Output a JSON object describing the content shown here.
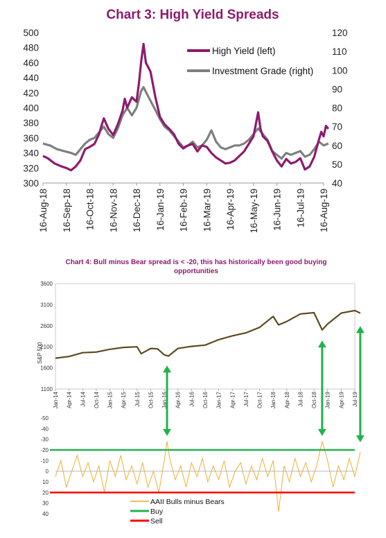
{
  "chart_data": [
    {
      "type": "line",
      "title": "Chart 3: High Yield Spreads",
      "x_labels": [
        "16-Aug-18",
        "16-Sep-18",
        "16-Oct-18",
        "16-Nov-18",
        "16-Dec-18",
        "16-Jan-19",
        "16-Feb-19",
        "16-Mar-19",
        "16-Apr-19",
        "16-May-19",
        "16-Jun-19",
        "16-Jul-19",
        "16-Aug-19"
      ],
      "y_left": {
        "min": 300,
        "max": 500,
        "ticks": [
          300,
          320,
          340,
          360,
          380,
          400,
          420,
          440,
          460,
          480,
          500
        ]
      },
      "y_right": {
        "min": 40,
        "max": 120,
        "ticks": [
          40,
          50,
          60,
          70,
          80,
          90,
          100,
          110,
          120
        ]
      },
      "legend_position": "top-right",
      "series": [
        {
          "name": "High Yield (left)",
          "axis": "left",
          "color": "#8e1a6e",
          "points": [
            [
              0,
              336
            ],
            [
              0.2,
              333
            ],
            [
              0.5,
              326
            ],
            [
              0.8,
              322
            ],
            [
              1,
              320
            ],
            [
              1.2,
              317
            ],
            [
              1.4,
              322
            ],
            [
              1.6,
              330
            ],
            [
              1.8,
              345
            ],
            [
              2,
              348
            ],
            [
              2.2,
              352
            ],
            [
              2.4,
              365
            ],
            [
              2.5,
              376
            ],
            [
              2.6,
              386
            ],
            [
              2.8,
              372
            ],
            [
              3,
              364
            ],
            [
              3.2,
              378
            ],
            [
              3.4,
              396
            ],
            [
              3.5,
              412
            ],
            [
              3.6,
              400
            ],
            [
              3.8,
              414
            ],
            [
              4,
              408
            ],
            [
              4.1,
              432
            ],
            [
              4.2,
              462
            ],
            [
              4.3,
              485
            ],
            [
              4.4,
              460
            ],
            [
              4.6,
              448
            ],
            [
              4.8,
              415
            ],
            [
              5,
              388
            ],
            [
              5.2,
              378
            ],
            [
              5.4,
              372
            ],
            [
              5.6,
              365
            ],
            [
              5.8,
              352
            ],
            [
              6,
              346
            ],
            [
              6.2,
              350
            ],
            [
              6.4,
              352
            ],
            [
              6.6,
              342
            ],
            [
              6.8,
              350
            ],
            [
              7,
              348
            ],
            [
              7.2,
              340
            ],
            [
              7.4,
              334
            ],
            [
              7.6,
              330
            ],
            [
              7.8,
              326
            ],
            [
              8,
              327
            ],
            [
              8.2,
              330
            ],
            [
              8.4,
              336
            ],
            [
              8.6,
              342
            ],
            [
              8.8,
              352
            ],
            [
              9,
              362
            ],
            [
              9.1,
              378
            ],
            [
              9.2,
              394
            ],
            [
              9.3,
              372
            ],
            [
              9.4,
              362
            ],
            [
              9.6,
              356
            ],
            [
              9.8,
              342
            ],
            [
              10,
              330
            ],
            [
              10.2,
              322
            ],
            [
              10.4,
              332
            ],
            [
              10.6,
              326
            ],
            [
              10.8,
              328
            ],
            [
              11,
              333
            ],
            [
              11.2,
              318
            ],
            [
              11.4,
              322
            ],
            [
              11.6,
              335
            ],
            [
              11.8,
              358
            ],
            [
              11.9,
              368
            ],
            [
              12,
              362
            ],
            [
              12.1,
              376
            ],
            [
              12.2,
              372
            ]
          ]
        },
        {
          "name": "Investment Grade (right)",
          "axis": "right",
          "color": "#7f7f7f",
          "points": [
            [
              0,
              61
            ],
            [
              0.3,
              60
            ],
            [
              0.6,
              58
            ],
            [
              0.9,
              57
            ],
            [
              1.2,
              56
            ],
            [
              1.4,
              55
            ],
            [
              1.6,
              58
            ],
            [
              1.8,
              61
            ],
            [
              2,
              63
            ],
            [
              2.2,
              64
            ],
            [
              2.4,
              67
            ],
            [
              2.6,
              70
            ],
            [
              2.8,
              66
            ],
            [
              3,
              64
            ],
            [
              3.2,
              69
            ],
            [
              3.4,
              76
            ],
            [
              3.6,
              80
            ],
            [
              3.8,
              76
            ],
            [
              4,
              80
            ],
            [
              4.2,
              89
            ],
            [
              4.3,
              91
            ],
            [
              4.5,
              86
            ],
            [
              4.8,
              79
            ],
            [
              5,
              74
            ],
            [
              5.2,
              70
            ],
            [
              5.4,
              68
            ],
            [
              5.6,
              65
            ],
            [
              5.8,
              62
            ],
            [
              6,
              59
            ],
            [
              6.2,
              60
            ],
            [
              6.4,
              62
            ],
            [
              6.6,
              59
            ],
            [
              6.8,
              60
            ],
            [
              7,
              63
            ],
            [
              7.2,
              68
            ],
            [
              7.4,
              62
            ],
            [
              7.6,
              59
            ],
            [
              7.8,
              58
            ],
            [
              8,
              59
            ],
            [
              8.2,
              60
            ],
            [
              8.4,
              60
            ],
            [
              8.6,
              61
            ],
            [
              8.8,
              63
            ],
            [
              9,
              66
            ],
            [
              9.2,
              69
            ],
            [
              9.4,
              66
            ],
            [
              9.6,
              63
            ],
            [
              9.8,
              57
            ],
            [
              10,
              55
            ],
            [
              10.2,
              53
            ],
            [
              10.4,
              56
            ],
            [
              10.6,
              55
            ],
            [
              10.8,
              56
            ],
            [
              11,
              57
            ],
            [
              11.2,
              54
            ],
            [
              11.4,
              55
            ],
            [
              11.6,
              58
            ],
            [
              11.8,
              62
            ],
            [
              12,
              60
            ],
            [
              12.2,
              61
            ]
          ]
        }
      ]
    },
    {
      "type": "line",
      "title": "Chart 4: Bull minus Bear spread is < -20, this has historically been good buying opportunities",
      "title_lines": [
        "Chart 4: Bull minus Bear spread is < -20, this has historically been good buying",
        "opportunities"
      ],
      "x_labels": [
        "Jan-14",
        "Apr-14",
        "Jul-14",
        "Oct-14",
        "Jan-15",
        "Apr-15",
        "Jul-15",
        "Oct-15",
        "Jan-16",
        "Apr-16",
        "Jul-16",
        "Oct-16",
        "Jan-17",
        "Apr-17",
        "Jul-17",
        "Oct-17",
        "Jan-18",
        "Apr-18",
        "Jul-18",
        "Oct-18",
        "Jan-19",
        "Apr-19",
        "Jul-19"
      ],
      "top_panel": {
        "ylabel": "S&P 500",
        "y_min": 1100,
        "y_max": 3600,
        "ticks": [
          1100,
          1600,
          2100,
          2600,
          3100,
          3600
        ],
        "series": {
          "color": "#5c4a1e",
          "points": [
            [
              0,
              1830
            ],
            [
              1,
              1870
            ],
            [
              2,
              1960
            ],
            [
              3,
              1975
            ],
            [
              4,
              2040
            ],
            [
              5,
              2085
            ],
            [
              6,
              2100
            ],
            [
              6.3,
              1935
            ],
            [
              7,
              2060
            ],
            [
              7.5,
              2050
            ],
            [
              8,
              1910
            ],
            [
              8.3,
              1880
            ],
            [
              9,
              2060
            ],
            [
              10,
              2110
            ],
            [
              11,
              2140
            ],
            [
              12,
              2270
            ],
            [
              13,
              2360
            ],
            [
              14,
              2430
            ],
            [
              15,
              2560
            ],
            [
              16,
              2820
            ],
            [
              16.4,
              2620
            ],
            [
              17,
              2700
            ],
            [
              18,
              2880
            ],
            [
              19,
              2910
            ],
            [
              19.6,
              2500
            ],
            [
              20,
              2640
            ],
            [
              21,
              2900
            ],
            [
              22,
              2960
            ],
            [
              22.4,
              2900
            ]
          ]
        }
      },
      "bottom_panel": {
        "y_min": -50,
        "y_max": 40,
        "ticks": [
          -50,
          -40,
          -30,
          -20,
          -10,
          0,
          10,
          20,
          30,
          40
        ],
        "series": [
          {
            "name": "AAII Bulls minus Bears",
            "color": "#e8a91b"
          },
          {
            "name": "Buy",
            "color": "#22b24c",
            "value": -20
          },
          {
            "name": "Sell",
            "color": "#ff0000",
            "value": 20
          }
        ],
        "bull_bear_points": [
          [
            0,
            5
          ],
          [
            0.4,
            -10
          ],
          [
            0.8,
            15
          ],
          [
            1.2,
            0
          ],
          [
            1.6,
            -15
          ],
          [
            2,
            5
          ],
          [
            2.4,
            -8
          ],
          [
            2.8,
            10
          ],
          [
            3.2,
            -5
          ],
          [
            3.6,
            20
          ],
          [
            4,
            -10
          ],
          [
            4.4,
            5
          ],
          [
            4.8,
            -15
          ],
          [
            5.2,
            8
          ],
          [
            5.6,
            -5
          ],
          [
            6,
            12
          ],
          [
            6.4,
            -8
          ],
          [
            6.8,
            15
          ],
          [
            7.2,
            0
          ],
          [
            7.6,
            20
          ],
          [
            8,
            -10
          ],
          [
            8.2,
            -28
          ],
          [
            8.4,
            -12
          ],
          [
            8.8,
            8
          ],
          [
            9.2,
            -5
          ],
          [
            9.6,
            15
          ],
          [
            10,
            -8
          ],
          [
            10.4,
            5
          ],
          [
            10.8,
            -12
          ],
          [
            11.2,
            10
          ],
          [
            11.6,
            -5
          ],
          [
            12,
            8
          ],
          [
            12.4,
            -10
          ],
          [
            12.8,
            15
          ],
          [
            13.2,
            0
          ],
          [
            13.6,
            -8
          ],
          [
            14,
            12
          ],
          [
            14.4,
            -5
          ],
          [
            14.8,
            8
          ],
          [
            15.2,
            -12
          ],
          [
            15.6,
            5
          ],
          [
            16,
            -10
          ],
          [
            16.4,
            38
          ],
          [
            16.8,
            -5
          ],
          [
            17.2,
            10
          ],
          [
            17.6,
            -12
          ],
          [
            18,
            5
          ],
          [
            18.4,
            -8
          ],
          [
            18.8,
            10
          ],
          [
            19.2,
            -5
          ],
          [
            19.6,
            -28
          ],
          [
            20,
            -10
          ],
          [
            20.4,
            15
          ],
          [
            20.8,
            -5
          ],
          [
            21.2,
            8
          ],
          [
            21.6,
            -12
          ],
          [
            22,
            5
          ],
          [
            22.4,
            -18
          ]
        ]
      },
      "annotations": [
        "arrow Jan-16 buy signal",
        "arrow Jan-19 buy signal",
        "arrow Aug-19 buy signal"
      ]
    }
  ]
}
